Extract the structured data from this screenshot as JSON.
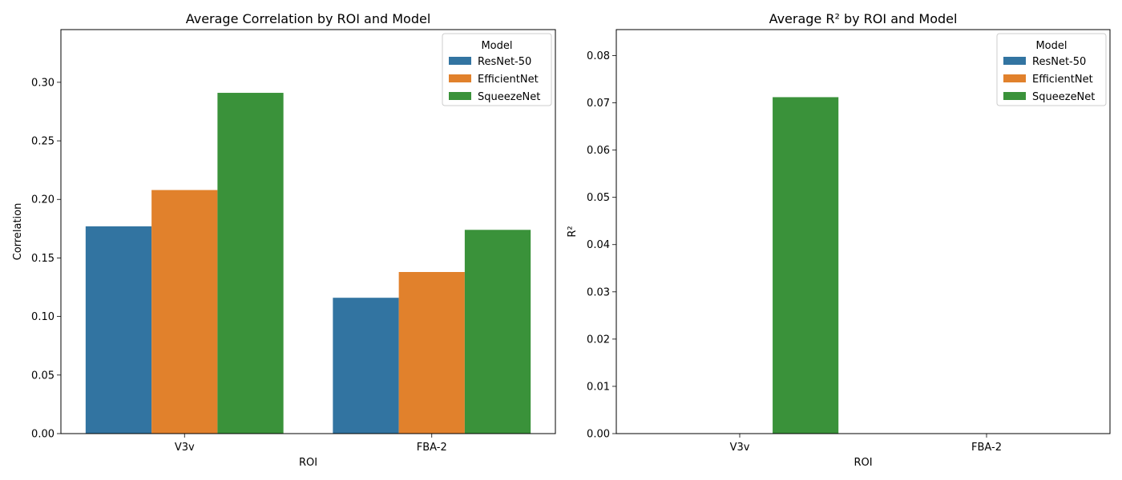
{
  "chart_data": [
    {
      "type": "bar",
      "title": "Average Correlation by ROI and Model",
      "xlabel": "ROI",
      "ylabel": "Correlation",
      "categories": [
        "V3v",
        "FBA-2"
      ],
      "series": [
        {
          "name": "ResNet-50",
          "color": "#3274a1",
          "values": [
            0.177,
            0.116
          ]
        },
        {
          "name": "EfficientNet",
          "color": "#e1812c",
          "values": [
            0.208,
            0.138
          ]
        },
        {
          "name": "SqueezeNet",
          "color": "#3a923a",
          "values": [
            0.291,
            0.174
          ]
        }
      ],
      "ylim": [
        0,
        0.345
      ],
      "yticks": [
        0.0,
        0.05,
        0.1,
        0.15,
        0.2,
        0.25,
        0.3
      ],
      "ytick_labels": [
        "0.00",
        "0.05",
        "0.10",
        "0.15",
        "0.20",
        "0.25",
        "0.30"
      ],
      "legend": {
        "title": "Model",
        "placement": "top-right"
      },
      "grid": false
    },
    {
      "type": "bar",
      "title": "Average R² by ROI and Model",
      "xlabel": "ROI",
      "ylabel": "R²",
      "categories": [
        "V3v",
        "FBA-2"
      ],
      "series": [
        {
          "name": "ResNet-50",
          "color": "#3274a1",
          "values": [
            0,
            0
          ]
        },
        {
          "name": "EfficientNet",
          "color": "#e1812c",
          "values": [
            0,
            0
          ]
        },
        {
          "name": "SqueezeNet",
          "color": "#3a923a",
          "values": [
            0.0712,
            0
          ]
        }
      ],
      "ylim": [
        0,
        0.0855
      ],
      "yticks": [
        0.0,
        0.01,
        0.02,
        0.03,
        0.04,
        0.05,
        0.06,
        0.07,
        0.08
      ],
      "ytick_labels": [
        "0.00",
        "0.01",
        "0.02",
        "0.03",
        "0.04",
        "0.05",
        "0.06",
        "0.07",
        "0.08"
      ],
      "legend": {
        "title": "Model",
        "placement": "top-right"
      },
      "grid": false
    }
  ]
}
